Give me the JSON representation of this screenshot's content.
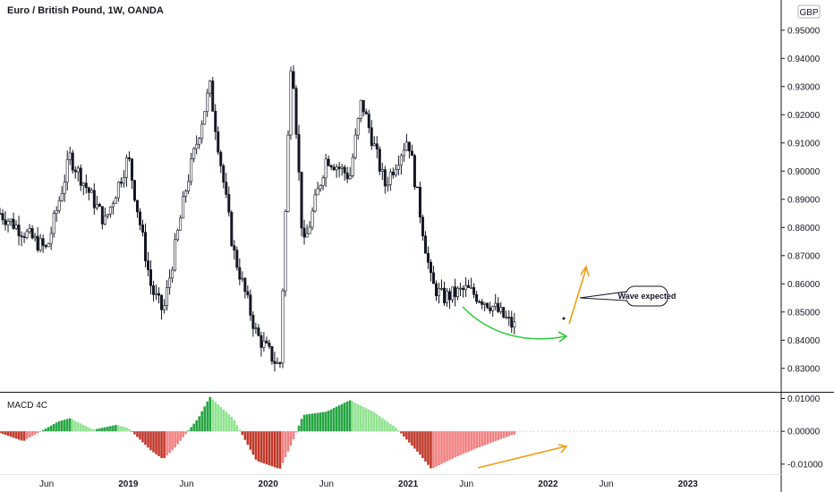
{
  "chart_data": [
    {
      "type": "candlestick",
      "title": "Euro / British Pound, 1W, OANDA",
      "currency_badge": "GBP",
      "ylim": [
        0.822,
        0.955
      ],
      "y_ticks": [
        "0.95000",
        "0.94000",
        "0.93000",
        "0.92000",
        "0.91000",
        "0.90000",
        "0.89000",
        "0.88000",
        "0.87000",
        "0.86000",
        "0.85000",
        "0.84000",
        "0.83000"
      ],
      "x_ticks": [
        "Jun",
        "2019",
        "Jun",
        "2020",
        "Jun",
        "2021",
        "Jun",
        "2022",
        "Jun",
        "2023"
      ],
      "x_range": [
        "2018-02",
        "2023-09"
      ],
      "x_tick_dates": [
        "2018-06",
        "2019-01",
        "2019-06",
        "2020-01",
        "2020-06",
        "2021-01",
        "2021-06",
        "2022-01",
        "2022-06",
        "2023-01"
      ],
      "key_points": [
        {
          "date": "2018-02",
          "price": 0.885
        },
        {
          "date": "2018-06",
          "price": 0.872
        },
        {
          "date": "2018-08",
          "price": 0.905
        },
        {
          "date": "2018-11",
          "price": 0.882
        },
        {
          "date": "2019-01",
          "price": 0.905
        },
        {
          "date": "2019-03",
          "price": 0.858
        },
        {
          "date": "2019-04",
          "price": 0.85
        },
        {
          "date": "2019-06",
          "price": 0.895
        },
        {
          "date": "2019-08",
          "price": 0.93
        },
        {
          "date": "2019-10",
          "price": 0.872
        },
        {
          "date": "2019-12",
          "price": 0.842
        },
        {
          "date": "2020-02",
          "price": 0.83
        },
        {
          "date": "2020-03",
          "price": 0.945
        },
        {
          "date": "2020-04",
          "price": 0.872
        },
        {
          "date": "2020-06",
          "price": 0.905
        },
        {
          "date": "2020-08",
          "price": 0.898
        },
        {
          "date": "2020-09",
          "price": 0.925
        },
        {
          "date": "2020-11",
          "price": 0.895
        },
        {
          "date": "2021-01",
          "price": 0.912
        },
        {
          "date": "2021-03",
          "price": 0.86
        },
        {
          "date": "2021-04",
          "price": 0.855
        },
        {
          "date": "2021-06",
          "price": 0.858
        },
        {
          "date": "2021-08",
          "price": 0.853
        },
        {
          "date": "2021-10",
          "price": 0.845
        }
      ],
      "annotations": [
        {
          "type": "curved-arrow",
          "color": "#2ecc40",
          "note": "rounded bottom"
        },
        {
          "type": "arrow",
          "color": "#f39c12",
          "note": "expected upward wave"
        },
        {
          "type": "callout",
          "text": "Wave expected"
        }
      ]
    },
    {
      "type": "histogram",
      "title": "MACD 4C",
      "ylim": [
        -0.0125,
        0.0115
      ],
      "y_ticks": [
        "0.01000",
        "0.00000",
        "-0.01000"
      ],
      "colors": {
        "up_strong": "#26a642",
        "up_weak": "#8fe38f",
        "down_strong": "#c0392b",
        "down_weak": "#f08080"
      },
      "key_points": [
        {
          "date": "2018-02",
          "value": -0.0005
        },
        {
          "date": "2018-04",
          "value": -0.003
        },
        {
          "date": "2018-05",
          "value": -0.001
        },
        {
          "date": "2018-07",
          "value": 0.003
        },
        {
          "date": "2018-08",
          "value": 0.004
        },
        {
          "date": "2018-10",
          "value": 0.0005
        },
        {
          "date": "2018-12",
          "value": 0.002
        },
        {
          "date": "2019-01",
          "value": 0.001
        },
        {
          "date": "2019-03",
          "value": -0.006
        },
        {
          "date": "2019-04",
          "value": -0.0085
        },
        {
          "date": "2019-05",
          "value": -0.005
        },
        {
          "date": "2019-07",
          "value": 0.004
        },
        {
          "date": "2019-08",
          "value": 0.0105
        },
        {
          "date": "2019-10",
          "value": 0.004
        },
        {
          "date": "2019-12",
          "value": -0.009
        },
        {
          "date": "2020-02",
          "value": -0.0115
        },
        {
          "date": "2020-03",
          "value": -0.004
        },
        {
          "date": "2020-04",
          "value": 0.005
        },
        {
          "date": "2020-06",
          "value": 0.006
        },
        {
          "date": "2020-08",
          "value": 0.0095
        },
        {
          "date": "2020-10",
          "value": 0.006
        },
        {
          "date": "2020-12",
          "value": 0.001
        },
        {
          "date": "2021-02",
          "value": -0.007
        },
        {
          "date": "2021-03",
          "value": -0.0115
        },
        {
          "date": "2021-05",
          "value": -0.008
        },
        {
          "date": "2021-07",
          "value": -0.005
        },
        {
          "date": "2021-10",
          "value": -0.001
        }
      ],
      "annotations": [
        {
          "type": "arrow",
          "color": "#f39c12",
          "note": "bullish divergence"
        }
      ]
    }
  ]
}
